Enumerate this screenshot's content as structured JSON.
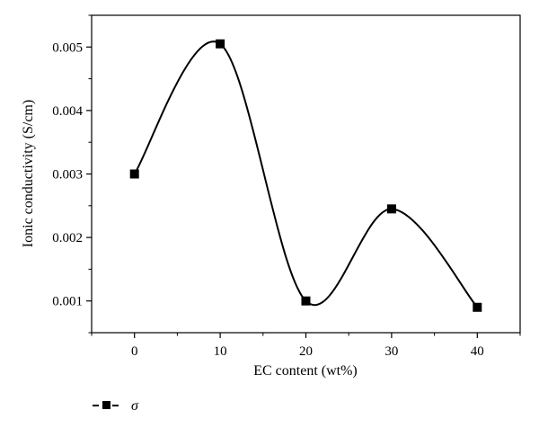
{
  "chart_data": {
    "type": "line",
    "title": "",
    "xlabel": "EC content (wt%)",
    "ylabel": "Ionic conductivity (S/cm)",
    "xlim": [
      -5,
      45
    ],
    "ylim": [
      0.0005,
      0.0055
    ],
    "xticks": [
      0,
      10,
      20,
      30,
      40
    ],
    "yticks": [
      0.001,
      0.002,
      0.003,
      0.004,
      0.005
    ],
    "xtick_labels": [
      "0",
      "10",
      "20",
      "30",
      "40"
    ],
    "ytick_labels": [
      "0.001",
      "0.002",
      "0.003",
      "0.004",
      "0.005"
    ],
    "grid": false,
    "legend_position": "bottom-left",
    "series": [
      {
        "name": "σ",
        "x": [
          0,
          10,
          20,
          30,
          40
        ],
        "y": [
          0.003,
          0.00505,
          0.001,
          0.00245,
          0.0009
        ],
        "color": "#000000",
        "marker": "square",
        "line": "smooth"
      }
    ]
  }
}
